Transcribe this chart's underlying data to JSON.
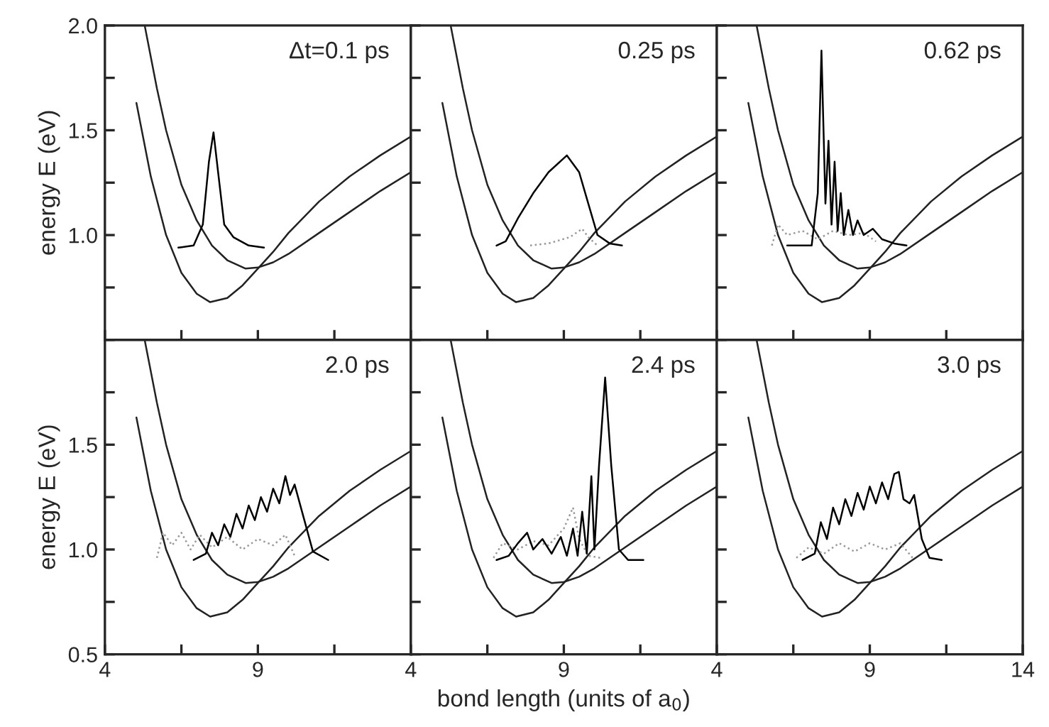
{
  "chart_data": [
    {
      "type": "line",
      "annotations": [
        "Δt=0.1 ps"
      ],
      "ylabel": "energy E (eV)",
      "xlim": [
        4,
        14
      ],
      "ylim": [
        0.5,
        2.0
      ],
      "tick_labels": "y",
      "xticks": [
        {
          "value": 4,
          "label": null
        },
        {
          "value": 6.5,
          "label": null
        },
        {
          "value": 9,
          "label": null
        },
        {
          "value": 11.5,
          "label": null
        },
        {
          "value": 14,
          "label": null
        }
      ],
      "yticks": [
        {
          "value": 0.5,
          "label": null
        },
        {
          "value": 0.75,
          "label": null
        },
        {
          "value": 1.0,
          "label": "1.0"
        },
        {
          "value": 1.25,
          "label": null
        },
        {
          "value": 1.5,
          "label": "1.5"
        },
        {
          "value": 1.75,
          "label": null
        },
        {
          "value": 2.0,
          "label": "2.0"
        }
      ],
      "series": [
        {
          "color": "#222222",
          "x": [
            5.03,
            5.5,
            6,
            6.5,
            7,
            7.44,
            8,
            8.5,
            9,
            9.5,
            10,
            11,
            12,
            13,
            14
          ],
          "values": [
            1.63,
            1.28,
            1.0,
            0.82,
            0.72,
            0.68,
            0.7,
            0.76,
            0.84,
            0.92,
            1.01,
            1.16,
            1.28,
            1.38,
            1.47
          ]
        },
        {
          "color": "#222222",
          "x": [
            5.3,
            5.7,
            6,
            6.5,
            7,
            7.5,
            8,
            8.6,
            9,
            9.5,
            10,
            11,
            12,
            13,
            14
          ],
          "values": [
            2.0,
            1.7,
            1.5,
            1.24,
            1.07,
            0.95,
            0.88,
            0.84,
            0.845,
            0.87,
            0.91,
            1.01,
            1.11,
            1.21,
            1.3
          ]
        },
        {
          "color": "#000000",
          "x": [
            6.4,
            6.9,
            7.2,
            7.4,
            7.55,
            7.7,
            7.9,
            8.2,
            8.7,
            9.2
          ],
          "values": [
            0.94,
            0.95,
            1.05,
            1.35,
            1.49,
            1.3,
            1.05,
            0.99,
            0.95,
            0.94
          ]
        }
      ]
    },
    {
      "type": "line",
      "annotations": [
        "0.25 ps"
      ],
      "xlim": [
        4,
        14
      ],
      "ylim": [
        0.5,
        2.0
      ],
      "tick_labels": false,
      "xticks": [
        {
          "value": 4,
          "label": null
        },
        {
          "value": 6.5,
          "label": null
        },
        {
          "value": 9,
          "label": null
        },
        {
          "value": 11.5,
          "label": null
        },
        {
          "value": 14,
          "label": null
        }
      ],
      "yticks": [
        {
          "value": 0.5,
          "label": null
        },
        {
          "value": 0.75,
          "label": null
        },
        {
          "value": 1.0,
          "label": null
        },
        {
          "value": 1.25,
          "label": null
        },
        {
          "value": 1.5,
          "label": null
        },
        {
          "value": 1.75,
          "label": null
        },
        {
          "value": 2.0,
          "label": null
        }
      ],
      "series": [
        {
          "color": "#222222",
          "x": [
            5.03,
            5.5,
            6,
            6.5,
            7,
            7.44,
            8,
            8.5,
            9,
            9.5,
            10,
            11,
            12,
            13,
            14
          ],
          "values": [
            1.63,
            1.28,
            1.0,
            0.82,
            0.72,
            0.68,
            0.7,
            0.76,
            0.84,
            0.92,
            1.01,
            1.16,
            1.28,
            1.38,
            1.47
          ]
        },
        {
          "color": "#222222",
          "x": [
            5.3,
            5.7,
            6,
            6.5,
            7,
            7.5,
            8,
            8.6,
            9,
            9.5,
            10,
            11,
            12,
            13,
            14
          ],
          "values": [
            2.0,
            1.7,
            1.5,
            1.24,
            1.07,
            0.95,
            0.88,
            0.84,
            0.845,
            0.87,
            0.91,
            1.01,
            1.11,
            1.21,
            1.3
          ]
        },
        {
          "color": "#000000",
          "x": [
            6.8,
            7.1,
            7.5,
            8,
            8.5,
            9.1,
            9.5,
            9.8,
            10.1,
            10.5,
            10.9
          ],
          "values": [
            0.95,
            0.97,
            1.08,
            1.2,
            1.3,
            1.38,
            1.3,
            1.15,
            1.0,
            0.96,
            0.95
          ]
        },
        {
          "color": "#999999",
          "line_style": "dotted",
          "x": [
            7.9,
            8.5,
            9.2,
            9.6,
            9.8,
            10.1
          ],
          "values": [
            0.95,
            0.96,
            0.99,
            1.03,
            0.99,
            0.95
          ]
        }
      ]
    },
    {
      "type": "line",
      "annotations": [
        "0.62 ps"
      ],
      "xlim": [
        4,
        14
      ],
      "ylim": [
        0.5,
        2.0
      ],
      "tick_labels": false,
      "xticks": [
        {
          "value": 4,
          "label": null
        },
        {
          "value": 6.5,
          "label": null
        },
        {
          "value": 9,
          "label": null
        },
        {
          "value": 11.5,
          "label": null
        },
        {
          "value": 14,
          "label": null
        }
      ],
      "yticks": [
        {
          "value": 0.5,
          "label": null
        },
        {
          "value": 0.75,
          "label": null
        },
        {
          "value": 1.0,
          "label": null
        },
        {
          "value": 1.25,
          "label": null
        },
        {
          "value": 1.5,
          "label": null
        },
        {
          "value": 1.75,
          "label": null
        },
        {
          "value": 2.0,
          "label": null
        }
      ],
      "series": [
        {
          "color": "#222222",
          "x": [
            5.03,
            5.5,
            6,
            6.5,
            7,
            7.44,
            8,
            8.5,
            9,
            9.5,
            10,
            11,
            12,
            13,
            14
          ],
          "values": [
            1.63,
            1.28,
            1.0,
            0.82,
            0.72,
            0.68,
            0.7,
            0.76,
            0.84,
            0.92,
            1.01,
            1.16,
            1.28,
            1.38,
            1.47
          ]
        },
        {
          "color": "#222222",
          "x": [
            5.3,
            5.7,
            6,
            6.5,
            7,
            7.5,
            8,
            8.6,
            9,
            9.5,
            10,
            11,
            12,
            13,
            14
          ],
          "values": [
            2.0,
            1.7,
            1.5,
            1.24,
            1.07,
            0.95,
            0.88,
            0.84,
            0.845,
            0.87,
            0.91,
            1.01,
            1.11,
            1.21,
            1.3
          ]
        },
        {
          "color": "#999999",
          "line_style": "dotted",
          "x": [
            5.8,
            6.0,
            6.3,
            6.8,
            7.3,
            7.8,
            8.3,
            8.8,
            9.2
          ],
          "values": [
            0.95,
            1.05,
            1.0,
            1.02,
            0.98,
            1.02,
            1.0,
            1.01,
            0.97
          ]
        },
        {
          "color": "#000000",
          "x": [
            6.3,
            7.1,
            7.3,
            7.42,
            7.55,
            7.65,
            7.75,
            7.85,
            7.95,
            8.05,
            8.15,
            8.3,
            8.45,
            8.6,
            8.8,
            9.1,
            9.4,
            9.8,
            10.2
          ],
          "values": [
            0.95,
            0.95,
            1.2,
            1.88,
            1.15,
            1.45,
            1.05,
            1.35,
            1.02,
            1.2,
            1.0,
            1.12,
            1.0,
            1.07,
            1.0,
            1.03,
            0.98,
            0.96,
            0.95
          ]
        }
      ]
    },
    {
      "type": "line",
      "annotations": [
        "2.0 ps"
      ],
      "ylabel": "energy E (eV)",
      "xlim": [
        4,
        14
      ],
      "ylim": [
        0.5,
        2.0
      ],
      "xticks": [
        4,
        {
          "value": 6.5,
          "label": null
        },
        9,
        {
          "value": 11.5,
          "label": null
        },
        {
          "value": 14,
          "label": null
        }
      ],
      "yticks": [
        {
          "value": 0.5,
          "label": "0.5"
        },
        {
          "value": 0.75,
          "label": null
        },
        {
          "value": 1.0,
          "label": "1.0"
        },
        {
          "value": 1.25,
          "label": null
        },
        {
          "value": 1.5,
          "label": "1.5"
        },
        {
          "value": 1.75,
          "label": null
        },
        {
          "value": 2.0,
          "label": null
        }
      ],
      "series": [
        {
          "color": "#222222",
          "x": [
            5.03,
            5.5,
            6,
            6.5,
            7,
            7.44,
            8,
            8.5,
            9,
            9.5,
            10,
            11,
            12,
            13,
            14
          ],
          "values": [
            1.63,
            1.28,
            1.0,
            0.82,
            0.72,
            0.68,
            0.7,
            0.76,
            0.84,
            0.92,
            1.01,
            1.16,
            1.28,
            1.38,
            1.47
          ]
        },
        {
          "color": "#222222",
          "x": [
            5.3,
            5.7,
            6,
            6.5,
            7,
            7.5,
            8,
            8.6,
            9,
            9.5,
            10,
            11,
            12,
            13,
            14
          ],
          "values": [
            2.0,
            1.7,
            1.5,
            1.24,
            1.07,
            0.95,
            0.88,
            0.84,
            0.845,
            0.87,
            0.91,
            1.01,
            1.11,
            1.21,
            1.3
          ]
        },
        {
          "color": "#999999",
          "line_style": "dotted",
          "x": [
            5.7,
            5.9,
            6.2,
            6.5,
            6.8,
            7.1,
            7.5,
            8,
            8.5,
            9,
            9.5,
            9.9,
            10.2
          ],
          "values": [
            0.96,
            1.08,
            1.02,
            1.08,
            1.0,
            1.07,
            1.01,
            1.06,
            1.0,
            1.05,
            1.02,
            1.07,
            0.97
          ]
        },
        {
          "color": "#000000",
          "x": [
            6.9,
            7.3,
            7.5,
            7.7,
            7.9,
            8.1,
            8.3,
            8.5,
            8.7,
            8.9,
            9.1,
            9.3,
            9.5,
            9.7,
            9.9,
            10.05,
            10.2,
            10.5,
            10.8,
            11.3
          ],
          "values": [
            0.95,
            0.98,
            1.08,
            1.02,
            1.12,
            1.06,
            1.17,
            1.1,
            1.21,
            1.14,
            1.25,
            1.18,
            1.29,
            1.22,
            1.35,
            1.26,
            1.31,
            1.15,
            0.99,
            0.95
          ]
        }
      ]
    },
    {
      "type": "line",
      "annotations": [
        "2.4 ps"
      ],
      "xlabel": "bond length (units of a$_{0}$)",
      "xlim": [
        4,
        14
      ],
      "ylim": [
        0.5,
        2.0
      ],
      "tick_labels": "x",
      "xticks": [
        4,
        {
          "value": 6.5,
          "label": null
        },
        9,
        {
          "value": 11.5,
          "label": null
        },
        {
          "value": 14,
          "label": null
        }
      ],
      "yticks": [
        {
          "value": 0.5,
          "label": null
        },
        {
          "value": 0.75,
          "label": null
        },
        {
          "value": 1.0,
          "label": null
        },
        {
          "value": 1.25,
          "label": null
        },
        {
          "value": 1.5,
          "label": null
        },
        {
          "value": 1.75,
          "label": null
        },
        {
          "value": 2.0,
          "label": null
        }
      ],
      "series": [
        {
          "color": "#222222",
          "x": [
            5.03,
            5.5,
            6,
            6.5,
            7,
            7.44,
            8,
            8.5,
            9,
            9.5,
            10,
            11,
            12,
            13,
            14
          ],
          "values": [
            1.63,
            1.28,
            1.0,
            0.82,
            0.72,
            0.68,
            0.7,
            0.76,
            0.84,
            0.92,
            1.01,
            1.16,
            1.28,
            1.38,
            1.47
          ]
        },
        {
          "color": "#222222",
          "x": [
            5.3,
            5.7,
            6,
            6.5,
            7,
            7.5,
            8,
            8.6,
            9,
            9.5,
            10,
            11,
            12,
            13,
            14
          ],
          "values": [
            2.0,
            1.7,
            1.5,
            1.24,
            1.07,
            0.95,
            0.88,
            0.84,
            0.845,
            0.87,
            0.91,
            1.01,
            1.11,
            1.21,
            1.3
          ]
        },
        {
          "color": "#999999",
          "line_style": "dotted",
          "x": [
            6.7,
            7,
            7.5,
            8,
            8.5,
            9,
            9.3,
            9.5,
            9.8,
            10.2
          ],
          "values": [
            0.96,
            1.03,
            1.0,
            1.04,
            1.02,
            1.1,
            1.2,
            1.05,
            0.97,
            0.96
          ]
        },
        {
          "color": "#000000",
          "x": [
            6.8,
            7.2,
            7.5,
            7.8,
            8.0,
            8.3,
            8.6,
            8.9,
            9.1,
            9.3,
            9.45,
            9.6,
            9.75,
            9.9,
            10.0,
            10.15,
            10.35,
            10.55,
            10.8,
            11.1,
            11.6
          ],
          "values": [
            0.95,
            0.97,
            1.03,
            1.08,
            1.0,
            1.05,
            0.98,
            1.06,
            0.97,
            1.1,
            0.97,
            1.18,
            0.98,
            1.35,
            1.0,
            1.4,
            1.82,
            1.4,
            1.0,
            0.95,
            0.95
          ]
        }
      ]
    },
    {
      "type": "line",
      "annotations": [
        "3.0 ps"
      ],
      "xlim": [
        4,
        14
      ],
      "ylim": [
        0.5,
        2.0
      ],
      "tick_labels": "x",
      "xticks": [
        4,
        {
          "value": 6.5,
          "label": null
        },
        9,
        {
          "value": 11.5,
          "label": null
        },
        14
      ],
      "yticks": [
        {
          "value": 0.5,
          "label": null
        },
        {
          "value": 0.75,
          "label": null
        },
        {
          "value": 1.0,
          "label": null
        },
        {
          "value": 1.25,
          "label": null
        },
        {
          "value": 1.5,
          "label": null
        },
        {
          "value": 1.75,
          "label": null
        },
        {
          "value": 2.0,
          "label": null
        }
      ],
      "series": [
        {
          "color": "#222222",
          "x": [
            5.03,
            5.5,
            6,
            6.5,
            7,
            7.44,
            8,
            8.5,
            9,
            9.5,
            10,
            11,
            12,
            13,
            14
          ],
          "values": [
            1.63,
            1.28,
            1.0,
            0.82,
            0.72,
            0.68,
            0.7,
            0.76,
            0.84,
            0.92,
            1.01,
            1.16,
            1.28,
            1.38,
            1.47
          ]
        },
        {
          "color": "#222222",
          "x": [
            5.3,
            5.7,
            6,
            6.5,
            7,
            7.5,
            8,
            8.6,
            9,
            9.5,
            10,
            11,
            12,
            13,
            14
          ],
          "values": [
            2.0,
            1.7,
            1.5,
            1.24,
            1.07,
            0.95,
            0.88,
            0.84,
            0.845,
            0.87,
            0.91,
            1.01,
            1.11,
            1.21,
            1.3
          ]
        },
        {
          "color": "#999999",
          "line_style": "dotted",
          "x": [
            6.6,
            7,
            7.5,
            8,
            8.5,
            9,
            9.5,
            10,
            10.4
          ],
          "values": [
            0.96,
            1.01,
            0.98,
            1.03,
            0.99,
            1.03,
            1.0,
            1.03,
            0.96
          ]
        },
        {
          "color": "#000000",
          "x": [
            6.8,
            7.2,
            7.4,
            7.6,
            7.8,
            8.0,
            8.2,
            8.4,
            8.6,
            8.8,
            9.0,
            9.2,
            9.4,
            9.6,
            9.8,
            9.95,
            10.1,
            10.3,
            10.45,
            10.7,
            10.95,
            11.35
          ],
          "values": [
            0.95,
            0.98,
            1.13,
            1.05,
            1.2,
            1.12,
            1.24,
            1.16,
            1.27,
            1.19,
            1.3,
            1.22,
            1.32,
            1.24,
            1.36,
            1.37,
            1.24,
            1.22,
            1.26,
            1.05,
            0.96,
            0.95
          ]
        }
      ]
    }
  ]
}
